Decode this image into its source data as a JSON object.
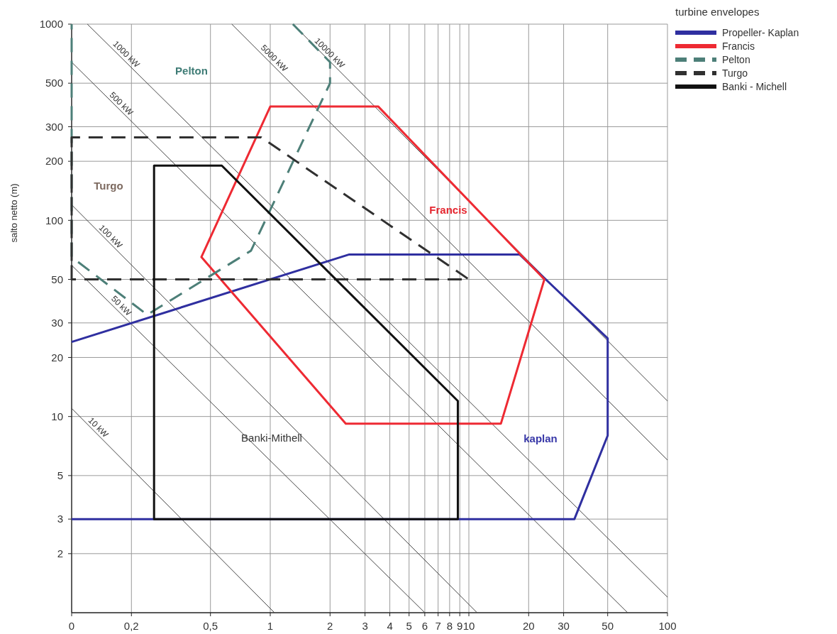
{
  "chart_data": {
    "type": "line",
    "legend_title": "turbine envelopes",
    "ylabel": "salto netto (m)",
    "log": "xy",
    "xlim": [
      0.1,
      100
    ],
    "ylim": [
      1,
      1000
    ],
    "xticks": [
      {
        "value": 0.1,
        "label": "0"
      },
      {
        "value": 0.2,
        "label": "0,2"
      },
      {
        "value": 0.5,
        "label": "0,5"
      },
      1,
      2,
      3,
      4,
      5,
      6,
      7,
      8,
      9,
      10,
      20,
      30,
      50,
      100
    ],
    "yticks": [
      2,
      3,
      5,
      10,
      20,
      30,
      50,
      100,
      200,
      300,
      500,
      1000
    ],
    "grid": true,
    "legend": "top right",
    "marker": "none",
    "series": [
      {
        "color": "#444444",
        "x": [
          0.1,
          1.05
        ],
        "values": [
          11,
          1
        ]
      },
      {
        "color": "#444444",
        "x": [
          0.1,
          6
        ],
        "values": [
          59,
          1
        ]
      },
      {
        "color": "#444444",
        "x": [
          0.1,
          11
        ],
        "values": [
          120,
          1
        ]
      },
      {
        "color": "#444444",
        "x": [
          0.1,
          63
        ],
        "values": [
          640,
          1
        ]
      },
      {
        "color": "#444444",
        "x": [
          0.12,
          100
        ],
        "values": [
          1000,
          1.2
        ]
      },
      {
        "color": "#444444",
        "x": [
          0.64,
          100
        ],
        "values": [
          1000,
          6
        ]
      },
      {
        "color": "#444444",
        "x": [
          1.3,
          100
        ],
        "values": [
          1000,
          12
        ]
      },
      {
        "name": "Propeller- Kaplan",
        "color": "#2f2fa0",
        "x": [
          0.1,
          34,
          50,
          50,
          18,
          2.5,
          0.1
        ],
        "values": [
          3,
          3,
          8,
          25,
          67,
          67,
          24
        ]
      },
      {
        "name": "Francis",
        "color": "#ee2a33",
        "x": [
          0.45,
          1,
          3.5,
          24,
          14.5,
          2.4,
          0.45,
          1
        ],
        "values": [
          65,
          380,
          380,
          50,
          9.2,
          9.2,
          65,
          380
        ]
      },
      {
        "name": "Pelton",
        "color": "#4d7f78",
        "line_style": "dashed",
        "x": [
          1.3,
          2,
          2,
          0.8,
          0.24,
          0.1,
          0.1
        ],
        "values": [
          1000,
          640,
          500,
          70,
          33,
          65,
          1000
        ]
      },
      {
        "name": "Turgo",
        "color": "#303030",
        "line_style": "dashed",
        "x": [
          0.1,
          0.1,
          0.9,
          10,
          0.1,
          0.1
        ],
        "values": [
          50,
          265,
          265,
          50,
          50,
          265
        ]
      },
      {
        "name": "Banki - Michell",
        "color": "#111111",
        "x": [
          0.26,
          0.26,
          0.57,
          8.8,
          8.8,
          0.26,
          0.26
        ],
        "values": [
          3,
          190,
          190,
          12,
          3,
          3,
          190
        ]
      }
    ],
    "annotations": [
      "Pelton",
      "Turgo",
      "Francis",
      "kaplan",
      "Banki-Mithell",
      {
        "text": "10 kW",
        "x": 0.13,
        "y": 8.4
      },
      {
        "text": "50 kW",
        "x": 0.17,
        "y": 35
      },
      {
        "text": "100 kW",
        "x": 0.15,
        "y": 79
      },
      {
        "text": "500 kW",
        "x": 0.17,
        "y": 375
      },
      {
        "text": "1000 kW",
        "x": 0.18,
        "y": 670
      },
      {
        "text": "5000 kW",
        "x": 1,
        "y": 640
      },
      {
        "text": "10000 kW",
        "x": 1.9,
        "y": 680
      }
    ]
  }
}
